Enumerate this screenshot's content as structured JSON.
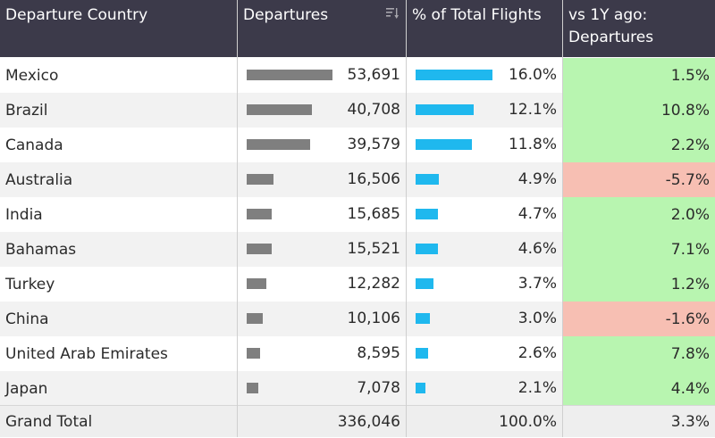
{
  "table": {
    "headers": {
      "country": "Departure Country",
      "departures": "Departures",
      "pct": "% of Total Flights",
      "yoy": "vs 1Y ago: Departures"
    },
    "max_departures": 53691,
    "max_pct": 16.0,
    "rows": [
      {
        "country": "Mexico",
        "departures": "53,691",
        "departures_value": 53691,
        "pct": "16.0%",
        "pct_value": 16.0,
        "yoy": "1.5%",
        "yoy_value": 1.5
      },
      {
        "country": "Brazil",
        "departures": "40,708",
        "departures_value": 40708,
        "pct": "12.1%",
        "pct_value": 12.1,
        "yoy": "10.8%",
        "yoy_value": 10.8
      },
      {
        "country": "Canada",
        "departures": "39,579",
        "departures_value": 39579,
        "pct": "11.8%",
        "pct_value": 11.8,
        "yoy": "2.2%",
        "yoy_value": 2.2
      },
      {
        "country": "Australia",
        "departures": "16,506",
        "departures_value": 16506,
        "pct": "4.9%",
        "pct_value": 4.9,
        "yoy": "-5.7%",
        "yoy_value": -5.7
      },
      {
        "country": "India",
        "departures": "15,685",
        "departures_value": 15685,
        "pct": "4.7%",
        "pct_value": 4.7,
        "yoy": "2.0%",
        "yoy_value": 2.0
      },
      {
        "country": "Bahamas",
        "departures": "15,521",
        "departures_value": 15521,
        "pct": "4.6%",
        "pct_value": 4.6,
        "yoy": "7.1%",
        "yoy_value": 7.1
      },
      {
        "country": "Turkey",
        "departures": "12,282",
        "departures_value": 12282,
        "pct": "3.7%",
        "pct_value": 3.7,
        "yoy": "1.2%",
        "yoy_value": 1.2
      },
      {
        "country": "China",
        "departures": "10,106",
        "departures_value": 10106,
        "pct": "3.0%",
        "pct_value": 3.0,
        "yoy": "-1.6%",
        "yoy_value": -1.6
      },
      {
        "country": "United Arab Emirates",
        "departures": "8,595",
        "departures_value": 8595,
        "pct": "2.6%",
        "pct_value": 2.6,
        "yoy": "7.8%",
        "yoy_value": 7.8
      },
      {
        "country": "Japan",
        "departures": "7,078",
        "departures_value": 7078,
        "pct": "2.1%",
        "pct_value": 2.1,
        "yoy": "4.4%",
        "yoy_value": 4.4
      }
    ],
    "total": {
      "label": "Grand Total",
      "departures": "336,046",
      "pct": "100.0%",
      "yoy": "3.3%"
    }
  },
  "colors": {
    "header_bg": "#3c3a4a",
    "departures_bar": "#7f7f7f",
    "pct_bar": "#1fb8ee",
    "positive_bg": "#b8f5b0",
    "negative_bg": "#f7bfb3"
  },
  "icons": {
    "sort": "sort-descending-icon"
  }
}
